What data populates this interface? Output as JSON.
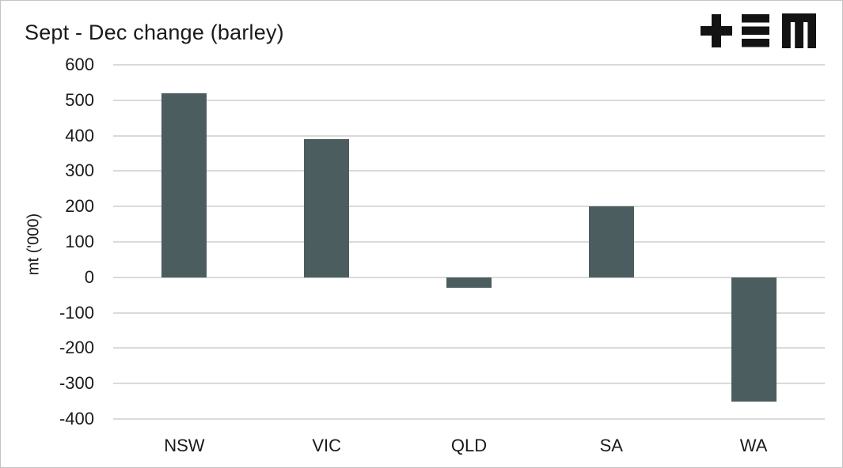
{
  "header": {
    "logo": "tem-logo"
  },
  "chart_data": {
    "type": "bar",
    "title": "Sept - Dec change (barley)",
    "categories": [
      "NSW",
      "VIC",
      "QLD",
      "SA",
      "WA"
    ],
    "values": [
      520,
      390,
      -30,
      200,
      -350
    ],
    "xlabel": "",
    "ylabel": "mt ('000)",
    "ylim": [
      -400,
      600
    ],
    "ytick_step": 100,
    "grid": true,
    "legend": false,
    "colors": {
      "bar": "#4B5D5F",
      "gridline": "#DADADA",
      "text": "#1A1A1A",
      "logo": "#131313",
      "frame_border": "#C4C4C4",
      "background": "#FFFFFF"
    }
  }
}
